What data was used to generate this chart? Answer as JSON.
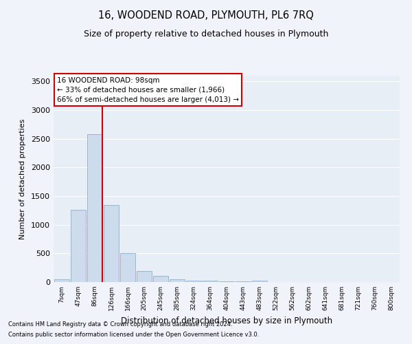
{
  "title": "16, WOODEND ROAD, PLYMOUTH, PL6 7RQ",
  "subtitle": "Size of property relative to detached houses in Plymouth",
  "xlabel": "Distribution of detached houses by size in Plymouth",
  "ylabel": "Number of detached properties",
  "bar_color": "#ccdcec",
  "bar_edge_color": "#8ab0cc",
  "bg_color": "#e8eef6",
  "fig_color": "#f0f4fa",
  "grid_color": "#ffffff",
  "vline_color": "#cc0000",
  "annotation_box_text": "16 WOODEND ROAD: 98sqm\n← 33% of detached houses are smaller (1,966)\n66% of semi-detached houses are larger (4,013) →",
  "footnote1": "Contains HM Land Registry data © Crown copyright and database right 2024.",
  "footnote2": "Contains public sector information licensed under the Open Government Licence v3.0.",
  "categories": [
    "7sqm",
    "47sqm",
    "86sqm",
    "126sqm",
    "166sqm",
    "205sqm",
    "245sqm",
    "285sqm",
    "324sqm",
    "364sqm",
    "404sqm",
    "443sqm",
    "483sqm",
    "522sqm",
    "562sqm",
    "602sqm",
    "641sqm",
    "681sqm",
    "721sqm",
    "760sqm",
    "800sqm"
  ],
  "values": [
    50,
    1265,
    2575,
    1340,
    500,
    190,
    110,
    50,
    30,
    20,
    15,
    10,
    30,
    0,
    0,
    0,
    0,
    0,
    0,
    0,
    0
  ],
  "ylim": [
    0,
    3600
  ],
  "yticks": [
    0,
    500,
    1000,
    1500,
    2000,
    2500,
    3000,
    3500
  ]
}
